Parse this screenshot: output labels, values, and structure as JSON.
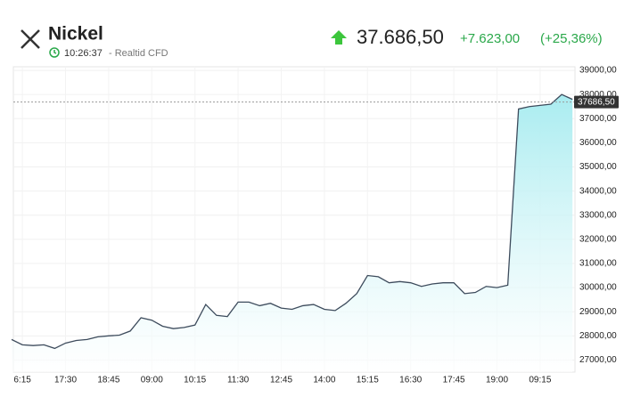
{
  "header": {
    "title": "Nickel",
    "time": "10:26:37",
    "source": "- Realtid CFD",
    "price": "37.686,50",
    "change": "+7.623,00",
    "change_pct": "(+25,36%)"
  },
  "chart_data": {
    "type": "area",
    "categories": [
      null,
      "6:15",
      null,
      null,
      null,
      "17:30",
      null,
      null,
      null,
      "18:45",
      null,
      null,
      null,
      "09:00",
      null,
      null,
      null,
      "10:15",
      null,
      null,
      null,
      "11:30",
      null,
      null,
      null,
      "12:45",
      null,
      null,
      null,
      "14:00",
      null,
      null,
      null,
      "15:15",
      null,
      null,
      null,
      "16:30",
      null,
      null,
      null,
      "17:45",
      null,
      null,
      null,
      "19:00",
      null,
      null,
      null,
      "09:15",
      null,
      null,
      null
    ],
    "values": [
      27850,
      27630,
      27600,
      27630,
      27480,
      27700,
      27810,
      27850,
      27960,
      28000,
      28030,
      28200,
      28750,
      28650,
      28400,
      28300,
      28350,
      28450,
      29300,
      28850,
      28800,
      29400,
      29400,
      29250,
      29350,
      29150,
      29100,
      29250,
      29300,
      29100,
      29050,
      29350,
      29750,
      30500,
      30450,
      30200,
      30250,
      30200,
      30050,
      30150,
      30200,
      30200,
      29750,
      29800,
      30050,
      30000,
      30100,
      37400,
      37500,
      37550,
      37600,
      38000,
      37800
    ],
    "color": "#3d4b5c",
    "fill_color": "#bdeff2",
    "ylim": [
      26500,
      39150
    ],
    "yticks": [
      {
        "value": 27000,
        "label": "27000,00"
      },
      {
        "value": 28000,
        "label": "28000,00"
      },
      {
        "value": 29000,
        "label": "29000,00"
      },
      {
        "value": 30000,
        "label": "30000,00"
      },
      {
        "value": 31000,
        "label": "31000,00"
      },
      {
        "value": 32000,
        "label": "32000,00"
      },
      {
        "value": 33000,
        "label": "33000,00"
      },
      {
        "value": 34000,
        "label": "34000,00"
      },
      {
        "value": 35000,
        "label": "35000,00"
      },
      {
        "value": 36000,
        "label": "36000,00"
      },
      {
        "value": 37000,
        "label": "37000,00"
      },
      {
        "value": 38000,
        "label": "38000,00"
      },
      {
        "value": 39000,
        "label": "39000,00"
      }
    ],
    "current": {
      "value": 37686.5,
      "label": "37686,50"
    },
    "grid": true
  }
}
